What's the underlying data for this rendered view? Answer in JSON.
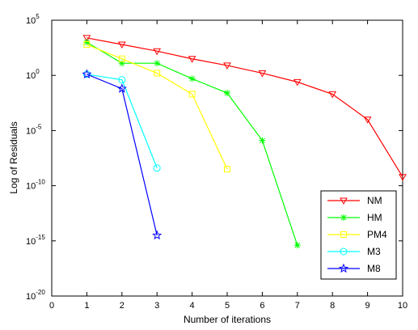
{
  "chart_data": {
    "type": "line",
    "title": "",
    "xlabel": "Number of iterations",
    "ylabel": "Log of Residuals",
    "xlim": [
      0,
      10
    ],
    "ylim_log10": [
      -20,
      5
    ],
    "y_scale": "log",
    "grid": false,
    "legend_placement": "bottom-right",
    "x_ticks": [
      "0",
      "1",
      "2",
      "3",
      "4",
      "5",
      "6",
      "7",
      "8",
      "9",
      "10"
    ],
    "y_ticks": [
      {
        "base": "10",
        "exp": "5",
        "log10": 5
      },
      {
        "base": "10",
        "exp": "0",
        "log10": 0
      },
      {
        "base": "10",
        "exp": "-5",
        "log10": -5
      },
      {
        "base": "10",
        "exp": "-10",
        "log10": -10
      },
      {
        "base": "10",
        "exp": "-15",
        "log10": -15
      },
      {
        "base": "10",
        "exp": "-20",
        "log10": -20
      }
    ],
    "series": [
      {
        "name": "NM",
        "color": "#ff0000",
        "marker": "triangle-down",
        "x": [
          1,
          2,
          3,
          4,
          5,
          6,
          7,
          8,
          9,
          10
        ],
        "y_log10": [
          3.4,
          2.8,
          2.2,
          1.5,
          0.9,
          0.2,
          -0.6,
          -1.7,
          -4.0,
          -9.2
        ]
      },
      {
        "name": "HM",
        "color": "#00ff00",
        "marker": "asterisk",
        "x": [
          1,
          2,
          3,
          4,
          5,
          6,
          7
        ],
        "y_log10": [
          3.0,
          1.1,
          1.1,
          -0.3,
          -1.6,
          -5.9,
          -15.4
        ]
      },
      {
        "name": "PM4",
        "color": "#ffff00",
        "marker": "square",
        "x": [
          1,
          2,
          3,
          4,
          5
        ],
        "y_log10": [
          2.8,
          1.5,
          0.2,
          -1.7,
          -8.5
        ]
      },
      {
        "name": "M3",
        "color": "#00ffff",
        "marker": "circle",
        "x": [
          1,
          2,
          3
        ],
        "y_log10": [
          0.1,
          -0.4,
          -8.4
        ]
      },
      {
        "name": "M8",
        "color": "#0000ff",
        "marker": "star",
        "x": [
          1,
          2,
          3
        ],
        "y_log10": [
          0.1,
          -1.2,
          -14.5
        ]
      }
    ]
  }
}
